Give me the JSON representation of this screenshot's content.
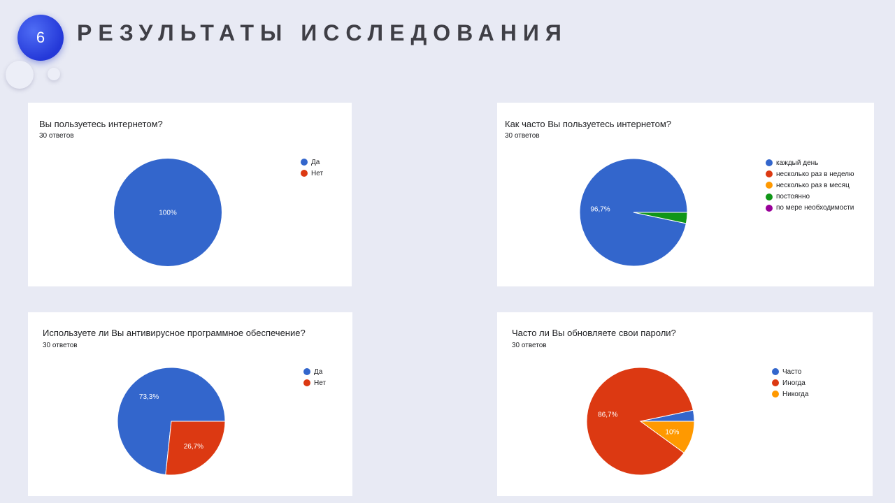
{
  "slide": {
    "number": "6",
    "title": "РЕЗУЛЬТАТЫ ИССЛЕДОВАНИЯ"
  },
  "chart_data": [
    {
      "type": "pie",
      "title": "Вы пользуетесь интернетом?",
      "subtitle": "30 ответов",
      "categories": [
        "Да",
        "Нет"
      ],
      "values": [
        100,
        0
      ],
      "labels": [
        "100%",
        ""
      ],
      "colors": [
        "#3366cc",
        "#dc3912"
      ],
      "legend": "right"
    },
    {
      "type": "pie",
      "title": "Как часто Вы пользуетесь интернетом?",
      "subtitle": "30 ответов",
      "categories": [
        "каждый день",
        "несколько раз в неделю",
        "несколько раз в месяц",
        "постоянно",
        "по мере необходимости"
      ],
      "values": [
        96.7,
        0,
        0,
        3.3,
        0
      ],
      "labels": [
        "96,7%",
        "",
        "",
        "",
        ""
      ],
      "colors": [
        "#3366cc",
        "#dc3912",
        "#ff9900",
        "#109618",
        "#990099"
      ],
      "legend": "right"
    },
    {
      "type": "pie",
      "title": "Используете ли Вы антивирусное программное обеспечение?",
      "subtitle": "30 ответов",
      "categories": [
        "Да",
        "Нет"
      ],
      "values": [
        73.3,
        26.7
      ],
      "labels": [
        "73,3%",
        "26,7%"
      ],
      "colors": [
        "#3366cc",
        "#dc3912"
      ],
      "legend": "right"
    },
    {
      "type": "pie",
      "title": "Часто ли Вы обновляете свои пароли?",
      "subtitle": "30 ответов",
      "categories": [
        "Часто",
        "Иногда",
        "Никогда"
      ],
      "values": [
        3.3,
        86.7,
        10
      ],
      "labels": [
        "",
        "86,7%",
        "10%"
      ],
      "colors": [
        "#3366cc",
        "#dc3912",
        "#ff9900"
      ],
      "legend": "right"
    }
  ]
}
